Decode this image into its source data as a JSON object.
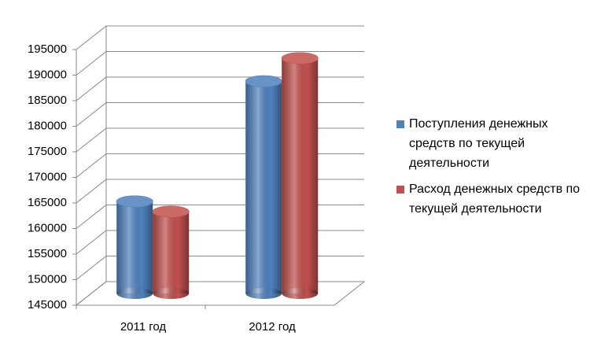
{
  "chart_data": {
    "type": "bar3d",
    "categories": [
      "2011 год",
      "2012 год"
    ],
    "series": [
      {
        "name": "Поступления денежных средств по текущей деятельности",
        "color": "#4f81bd",
        "values": [
          163000,
          186500
        ]
      },
      {
        "name": "Расход денежных средств по текущей деятельности",
        "color": "#c0504d",
        "values": [
          161000,
          191000
        ]
      }
    ],
    "ylim": [
      145000,
      195000
    ],
    "yticks": [
      145000,
      150000,
      155000,
      160000,
      165000,
      170000,
      175000,
      180000,
      185000,
      190000,
      195000
    ],
    "grid": true,
    "legend": "right"
  }
}
